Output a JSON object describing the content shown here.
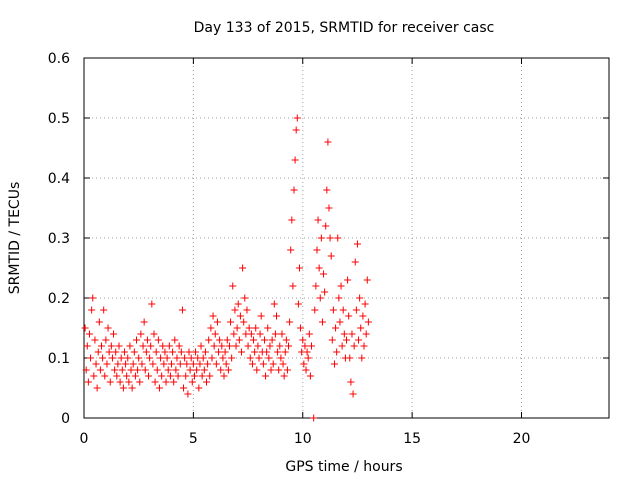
{
  "chart_data": {
    "type": "scatter",
    "title": "Day 133 of 2015, SRMTID for receiver casc",
    "xlabel": "GPS time / hours",
    "ylabel": "SRMTID / TECUs",
    "xlim": [
      0,
      24
    ],
    "ylim": [
      0,
      0.6
    ],
    "xticks": [
      0,
      5,
      10,
      15,
      20
    ],
    "xtick_labels": [
      "0",
      "5",
      "10",
      "15",
      "20"
    ],
    "yticks": [
      0,
      0.1,
      0.2,
      0.3,
      0.4,
      0.5,
      0.6
    ],
    "ytick_labels": [
      "0",
      "0.1",
      "0.2",
      "0.3",
      "0.4",
      "0.5",
      "0.6"
    ],
    "grid": true,
    "marker": "plus",
    "color": "#ff0000",
    "series": [
      {
        "name": "SRMTID",
        "points": [
          [
            0.05,
            0.15
          ],
          [
            0.1,
            0.08
          ],
          [
            0.15,
            0.12
          ],
          [
            0.2,
            0.06
          ],
          [
            0.25,
            0.14
          ],
          [
            0.3,
            0.1
          ],
          [
            0.35,
            0.18
          ],
          [
            0.4,
            0.2
          ],
          [
            0.45,
            0.07
          ],
          [
            0.5,
            0.13
          ],
          [
            0.55,
            0.09
          ],
          [
            0.6,
            0.05
          ],
          [
            0.65,
            0.11
          ],
          [
            0.7,
            0.16
          ],
          [
            0.75,
            0.08
          ],
          [
            0.8,
            0.12
          ],
          [
            0.85,
            0.1
          ],
          [
            0.9,
            0.18
          ],
          [
            0.95,
            0.07
          ],
          [
            1.0,
            0.13
          ],
          [
            1.05,
            0.09
          ],
          [
            1.1,
            0.15
          ],
          [
            1.15,
            0.11
          ],
          [
            1.2,
            0.06
          ],
          [
            1.25,
            0.12
          ],
          [
            1.3,
            0.1
          ],
          [
            1.35,
            0.14
          ],
          [
            1.4,
            0.08
          ],
          [
            1.45,
            0.11
          ],
          [
            1.5,
            0.07
          ],
          [
            1.55,
            0.09
          ],
          [
            1.6,
            0.12
          ],
          [
            1.65,
            0.06
          ],
          [
            1.7,
            0.1
          ],
          [
            1.75,
            0.08
          ],
          [
            1.8,
            0.05
          ],
          [
            1.85,
            0.11
          ],
          [
            1.9,
            0.09
          ],
          [
            1.95,
            0.07
          ],
          [
            2.0,
            0.1
          ],
          [
            2.05,
            0.06
          ],
          [
            2.1,
            0.12
          ],
          [
            2.15,
            0.08
          ],
          [
            2.2,
            0.05
          ],
          [
            2.25,
            0.09
          ],
          [
            2.3,
            0.11
          ],
          [
            2.35,
            0.07
          ],
          [
            2.4,
            0.13
          ],
          [
            2.45,
            0.08
          ],
          [
            2.5,
            0.1
          ],
          [
            2.55,
            0.06
          ],
          [
            2.6,
            0.14
          ],
          [
            2.65,
            0.09
          ],
          [
            2.7,
            0.12
          ],
          [
            2.75,
            0.16
          ],
          [
            2.8,
            0.08
          ],
          [
            2.85,
            0.11
          ],
          [
            2.9,
            0.13
          ],
          [
            2.95,
            0.07
          ],
          [
            3.0,
            0.1
          ],
          [
            3.05,
            0.12
          ],
          [
            3.1,
            0.19
          ],
          [
            3.15,
            0.09
          ],
          [
            3.2,
            0.14
          ],
          [
            3.25,
            0.06
          ],
          [
            3.3,
            0.11
          ],
          [
            3.35,
            0.08
          ],
          [
            3.4,
            0.13
          ],
          [
            3.45,
            0.05
          ],
          [
            3.5,
            0.1
          ],
          [
            3.55,
            0.07
          ],
          [
            3.6,
            0.12
          ],
          [
            3.65,
            0.09
          ],
          [
            3.7,
            0.11
          ],
          [
            3.75,
            0.06
          ],
          [
            3.8,
            0.1
          ],
          [
            3.85,
            0.08
          ],
          [
            3.9,
            0.12
          ],
          [
            3.95,
            0.07
          ],
          [
            4.0,
            0.09
          ],
          [
            4.05,
            0.11
          ],
          [
            4.1,
            0.06
          ],
          [
            4.15,
            0.13
          ],
          [
            4.2,
            0.08
          ],
          [
            4.25,
            0.1
          ],
          [
            4.3,
            0.07
          ],
          [
            4.35,
            0.12
          ],
          [
            4.4,
            0.09
          ],
          [
            4.45,
            0.11
          ],
          [
            4.5,
            0.18
          ],
          [
            4.55,
            0.05
          ],
          [
            4.6,
            0.1
          ],
          [
            4.65,
            0.07
          ],
          [
            4.7,
            0.09
          ],
          [
            4.75,
            0.04
          ],
          [
            4.8,
            0.11
          ],
          [
            4.85,
            0.08
          ],
          [
            4.9,
            0.1
          ],
          [
            4.95,
            0.06
          ],
          [
            5.0,
            0.09
          ],
          [
            5.05,
            0.07
          ],
          [
            5.1,
            0.11
          ],
          [
            5.15,
            0.08
          ],
          [
            5.2,
            0.1
          ],
          [
            5.25,
            0.05
          ],
          [
            5.3,
            0.09
          ],
          [
            5.35,
            0.12
          ],
          [
            5.4,
            0.07
          ],
          [
            5.45,
            0.1
          ],
          [
            5.5,
            0.08
          ],
          [
            5.55,
            0.11
          ],
          [
            5.6,
            0.06
          ],
          [
            5.65,
            0.09
          ],
          [
            5.7,
            0.13
          ],
          [
            5.75,
            0.07
          ],
          [
            5.8,
            0.15
          ],
          [
            5.85,
            0.1
          ],
          [
            5.9,
            0.17
          ],
          [
            5.95,
            0.12
          ],
          [
            6.0,
            0.14
          ],
          [
            6.05,
            0.09
          ],
          [
            6.1,
            0.16
          ],
          [
            6.15,
            0.11
          ],
          [
            6.2,
            0.13
          ],
          [
            6.25,
            0.08
          ],
          [
            6.3,
            0.12
          ],
          [
            6.35,
            0.1
          ],
          [
            6.4,
            0.07
          ],
          [
            6.45,
            0.11
          ],
          [
            6.5,
            0.09
          ],
          [
            6.55,
            0.13
          ],
          [
            6.6,
            0.08
          ],
          [
            6.65,
            0.12
          ],
          [
            6.7,
            0.16
          ],
          [
            6.75,
            0.1
          ],
          [
            6.8,
            0.22
          ],
          [
            6.85,
            0.14
          ],
          [
            6.9,
            0.18
          ],
          [
            6.95,
            0.12
          ],
          [
            7.0,
            0.15
          ],
          [
            7.05,
            0.19
          ],
          [
            7.1,
            0.13
          ],
          [
            7.15,
            0.17
          ],
          [
            7.2,
            0.11
          ],
          [
            7.25,
            0.25
          ],
          [
            7.3,
            0.16
          ],
          [
            7.35,
            0.2
          ],
          [
            7.4,
            0.14
          ],
          [
            7.45,
            0.18
          ],
          [
            7.5,
            0.12
          ],
          [
            7.55,
            0.15
          ],
          [
            7.6,
            0.1
          ],
          [
            7.65,
            0.14
          ],
          [
            7.7,
            0.09
          ],
          [
            7.75,
            0.13
          ],
          [
            7.8,
            0.11
          ],
          [
            7.85,
            0.15
          ],
          [
            7.9,
            0.08
          ],
          [
            7.95,
            0.12
          ],
          [
            8.0,
            0.1
          ],
          [
            8.05,
            0.14
          ],
          [
            8.1,
            0.17
          ],
          [
            8.15,
            0.11
          ],
          [
            8.2,
            0.09
          ],
          [
            8.25,
            0.13
          ],
          [
            8.3,
            0.07
          ],
          [
            8.35,
            0.11
          ],
          [
            8.4,
            0.15
          ],
          [
            8.45,
            0.1
          ],
          [
            8.5,
            0.12
          ],
          [
            8.55,
            0.08
          ],
          [
            8.6,
            0.13
          ],
          [
            8.65,
            0.09
          ],
          [
            8.7,
            0.19
          ],
          [
            8.75,
            0.14
          ],
          [
            8.8,
            0.17
          ],
          [
            8.85,
            0.11
          ],
          [
            8.9,
            0.08
          ],
          [
            8.95,
            0.12
          ],
          [
            9.0,
            0.1
          ],
          [
            9.05,
            0.14
          ],
          [
            9.1,
            0.09
          ],
          [
            9.15,
            0.07
          ],
          [
            9.2,
            0.11
          ],
          [
            9.25,
            0.13
          ],
          [
            9.3,
            0.08
          ],
          [
            9.35,
            0.12
          ],
          [
            9.4,
            0.16
          ],
          [
            9.45,
            0.28
          ],
          [
            9.5,
            0.33
          ],
          [
            9.55,
            0.22
          ],
          [
            9.6,
            0.38
          ],
          [
            9.65,
            0.43
          ],
          [
            9.7,
            0.48
          ],
          [
            9.75,
            0.5
          ],
          [
            9.8,
            0.19
          ],
          [
            9.85,
            0.25
          ],
          [
            9.9,
            0.15
          ],
          [
            9.95,
            0.11
          ],
          [
            10.0,
            0.13
          ],
          [
            10.05,
            0.09
          ],
          [
            10.1,
            0.12
          ],
          [
            10.15,
            0.08
          ],
          [
            10.2,
            0.11
          ],
          [
            10.25,
            0.1
          ],
          [
            10.3,
            0.14
          ],
          [
            10.35,
            0.07
          ],
          [
            10.4,
            0.12
          ],
          [
            10.5,
            0.0
          ],
          [
            10.55,
            0.18
          ],
          [
            10.6,
            0.22
          ],
          [
            10.65,
            0.28
          ],
          [
            10.7,
            0.33
          ],
          [
            10.75,
            0.25
          ],
          [
            10.8,
            0.2
          ],
          [
            10.85,
            0.3
          ],
          [
            10.9,
            0.16
          ],
          [
            10.95,
            0.24
          ],
          [
            11.0,
            0.21
          ],
          [
            11.05,
            0.32
          ],
          [
            11.1,
            0.38
          ],
          [
            11.15,
            0.46
          ],
          [
            11.2,
            0.35
          ],
          [
            11.25,
            0.3
          ],
          [
            11.3,
            0.27
          ],
          [
            11.35,
            0.13
          ],
          [
            11.4,
            0.18
          ],
          [
            11.45,
            0.09
          ],
          [
            11.5,
            0.15
          ],
          [
            11.55,
            0.11
          ],
          [
            11.6,
            0.3
          ],
          [
            11.65,
            0.2
          ],
          [
            11.7,
            0.16
          ],
          [
            11.75,
            0.22
          ],
          [
            11.8,
            0.12
          ],
          [
            11.85,
            0.18
          ],
          [
            11.9,
            0.14
          ],
          [
            11.95,
            0.1
          ],
          [
            12.0,
            0.13
          ],
          [
            12.05,
            0.23
          ],
          [
            12.1,
            0.17
          ],
          [
            12.15,
            0.1
          ],
          [
            12.2,
            0.06
          ],
          [
            12.25,
            0.14
          ],
          [
            12.3,
            0.04
          ],
          [
            12.35,
            0.12
          ],
          [
            12.4,
            0.26
          ],
          [
            12.45,
            0.18
          ],
          [
            12.5,
            0.29
          ],
          [
            12.55,
            0.13
          ],
          [
            12.6,
            0.2
          ],
          [
            12.65,
            0.15
          ],
          [
            12.7,
            0.1
          ],
          [
            12.75,
            0.17
          ],
          [
            12.8,
            0.12
          ],
          [
            12.85,
            0.19
          ],
          [
            12.9,
            0.14
          ],
          [
            12.95,
            0.23
          ],
          [
            13.0,
            0.16
          ]
        ]
      }
    ]
  }
}
